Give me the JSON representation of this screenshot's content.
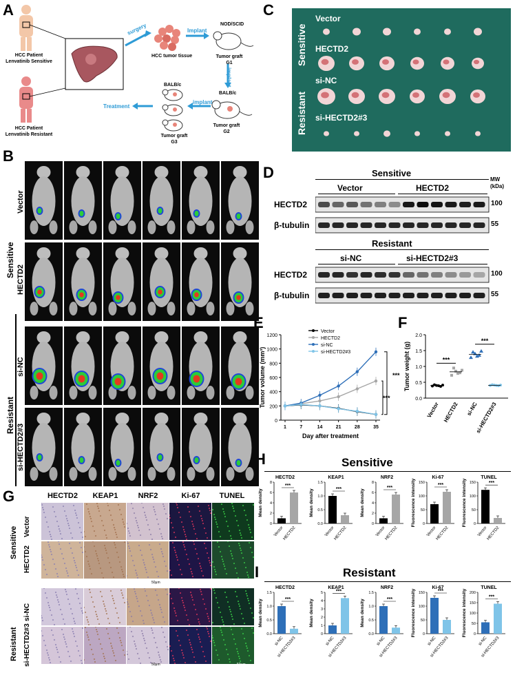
{
  "panels": {
    "A": "A",
    "B": "B",
    "C": "C",
    "D": "D",
    "E": "E",
    "F": "F",
    "G": "G",
    "H": "H",
    "I": "I"
  },
  "panelA": {
    "patient_sensitive": [
      "HCC Patient",
      "Lenvatinib Sensitive"
    ],
    "patient_resistant": [
      "HCC Patient",
      "Lenvatinib Resistant"
    ],
    "surgery": "surgery",
    "implant1": "Implant",
    "implant2": "implant",
    "implant3": "implant",
    "tissue": "HCC tumor tissue",
    "nod": "NOD/SCID",
    "g1": [
      "Tumor graft",
      "G1"
    ],
    "balb1": "BALB/c",
    "g2": [
      "Tumor graft",
      "G2"
    ],
    "balb2": "BALB/c",
    "g3": [
      "Tumor graft",
      "G3"
    ],
    "treatment": "Treatment"
  },
  "panelB": {
    "group_sensitive": "Sensitive",
    "group_resistant": "Resistant",
    "rows": [
      "Vector",
      "HECTD2",
      "si-NC",
      "si-HECTD2#3"
    ]
  },
  "panelC": {
    "group_sensitive": "Sensitive",
    "group_resistant": "Resistant",
    "rows": [
      "Vector",
      "HECTD2",
      "si-NC",
      "si-HECTD2#3"
    ]
  },
  "panelD": {
    "sensitive": "Sensitive",
    "resistant": "Resistant",
    "vector": "Vector",
    "hectd2": "HECTD2",
    "sinc": "si-NC",
    "sihectd2": "si-HECTD2#3",
    "mw": [
      "MW",
      "(kDa)"
    ],
    "band_hectd2": "HECTD2",
    "band_tubulin": "β-tubulin",
    "mw100": "100",
    "mw55": "55"
  },
  "chart_data": [
    {
      "panel": "E",
      "type": "line",
      "xlabel": "Day after treatment",
      "ylabel": "Tumor volume (mm³)",
      "x": [
        1,
        7,
        14,
        21,
        28,
        35
      ],
      "ylim": [
        0,
        1200
      ],
      "yticks": [
        0,
        200,
        400,
        600,
        800,
        1000,
        1200
      ],
      "series": [
        {
          "name": "Vector",
          "color": "#000000",
          "values": [
            200,
            215,
            200,
            165,
            120,
            80
          ]
        },
        {
          "name": "HECTD2",
          "color": "#a6a6a6",
          "values": [
            200,
            230,
            270,
            330,
            440,
            550
          ]
        },
        {
          "name": "si-NC",
          "color": "#2e6fb8",
          "values": [
            200,
            240,
            350,
            480,
            680,
            960
          ]
        },
        {
          "name": "si-HECTD2#3",
          "color": "#7fc4e8",
          "values": [
            200,
            220,
            200,
            160,
            125,
            80
          ]
        }
      ],
      "sig": [
        "***",
        "***"
      ]
    },
    {
      "panel": "F",
      "type": "scatter",
      "ylabel": "Tumor weight (g)",
      "ylim": [
        0.0,
        2.0
      ],
      "yticks": [
        0.0,
        0.5,
        1.0,
        1.5,
        2.0
      ],
      "categories": [
        "Vector",
        "HECTD2",
        "si-NC",
        "si-HECTD2#3"
      ],
      "colors": [
        "#000000",
        "#a6a6a6",
        "#2e6fb8",
        "#7fc4e8"
      ],
      "points": [
        [
          0.38,
          0.4,
          0.37,
          0.42,
          0.39,
          0.41
        ],
        [
          0.72,
          0.85,
          0.8,
          0.95,
          0.78,
          0.88
        ],
        [
          1.28,
          1.4,
          1.35,
          1.45,
          1.32,
          1.48
        ],
        [
          0.4,
          0.41,
          0.39,
          0.42,
          0.4,
          0.41
        ]
      ],
      "sig": [
        "***",
        "***"
      ]
    }
  ],
  "panelG": {
    "cols": [
      "HECTD2",
      "KEAP1",
      "NRF2",
      "Ki-67",
      "TUNEL"
    ],
    "sensitive": "Sensitive",
    "resistant": "Resistant",
    "rows": [
      "Vector",
      "HECTD2",
      "si-NC",
      "si-HECTD2#3"
    ],
    "scale": "50μm"
  },
  "panelH": {
    "title": "Sensitive",
    "charts": [
      {
        "title": "HECTD2",
        "ylabel": "Mean density",
        "yticks": [
          "0",
          "2",
          "4",
          "6",
          "8"
        ],
        "ymax": 8,
        "cats": [
          "Vector",
          "HECTD2"
        ],
        "values": [
          1.0,
          6.0
        ],
        "sig": "***"
      },
      {
        "title": "KEAP1",
        "ylabel": "Mean density",
        "yticks": [
          "0.0",
          "0.5",
          "1.0",
          "1.5"
        ],
        "ymax": 1.5,
        "cats": [
          "Vector",
          "HECTD2"
        ],
        "values": [
          1.0,
          0.3
        ],
        "sig": "***"
      },
      {
        "title": "NRF2",
        "ylabel": "Mean density",
        "yticks": [
          "0",
          "2",
          "4",
          "6",
          "8"
        ],
        "ymax": 8,
        "cats": [
          "Vector",
          "HECTD2"
        ],
        "values": [
          1.0,
          5.6
        ],
        "sig": "***"
      },
      {
        "title": "Ki-67",
        "ylabel": "Fluorescence intensity",
        "yticks": [
          "0",
          "50",
          "100",
          "150"
        ],
        "ymax": 150,
        "cats": [
          "Vector",
          "HECTD2"
        ],
        "values": [
          70,
          115
        ],
        "sig": "***"
      },
      {
        "title": "TUNEL",
        "ylabel": "Fluorescence intensity",
        "yticks": [
          "0",
          "50",
          "100",
          "150"
        ],
        "ymax": 150,
        "cats": [
          "Vector",
          "HECTD2"
        ],
        "values": [
          122,
          20
        ],
        "sig": "***"
      }
    ]
  },
  "panelI": {
    "title": "Resistant",
    "charts": [
      {
        "title": "HECTD2",
        "ylabel": "Mean density",
        "yticks": [
          "0.0",
          "0.5",
          "1.0",
          "1.5"
        ],
        "ymax": 1.5,
        "cats": [
          "si-NC",
          "si-HECTD2#3"
        ],
        "values": [
          1.0,
          0.18
        ],
        "sig": "***"
      },
      {
        "title": "KEAP1",
        "ylabel": "Mean density",
        "yticks": [
          "0",
          "1",
          "2",
          "3",
          "4",
          "5"
        ],
        "ymax": 5,
        "cats": [
          "si-NC",
          "si-HECTD2#3"
        ],
        "values": [
          1.0,
          4.3
        ],
        "sig": "***"
      },
      {
        "title": "NRF2",
        "ylabel": "Mean density",
        "yticks": [
          "0.0",
          "0.5",
          "1.0",
          "1.5"
        ],
        "ymax": 1.5,
        "cats": [
          "si-NC",
          "si-HECTD2#3"
        ],
        "values": [
          1.0,
          0.22
        ],
        "sig": "***"
      },
      {
        "title": "Ki-67",
        "ylabel": "Fluorescence intensity",
        "yticks": [
          "0",
          "50",
          "100",
          "150"
        ],
        "ymax": 150,
        "cats": [
          "si-NC",
          "si-HECTD2#3"
        ],
        "values": [
          130,
          50
        ],
        "sig": "***"
      },
      {
        "title": "TUNEL",
        "ylabel": "Fluorescence intensity",
        "yticks": [
          "0",
          "50",
          "100",
          "150",
          "200"
        ],
        "ymax": 200,
        "cats": [
          "si-NC",
          "si-HECTD2#3"
        ],
        "values": [
          55,
          145
        ],
        "sig": "***"
      }
    ]
  }
}
